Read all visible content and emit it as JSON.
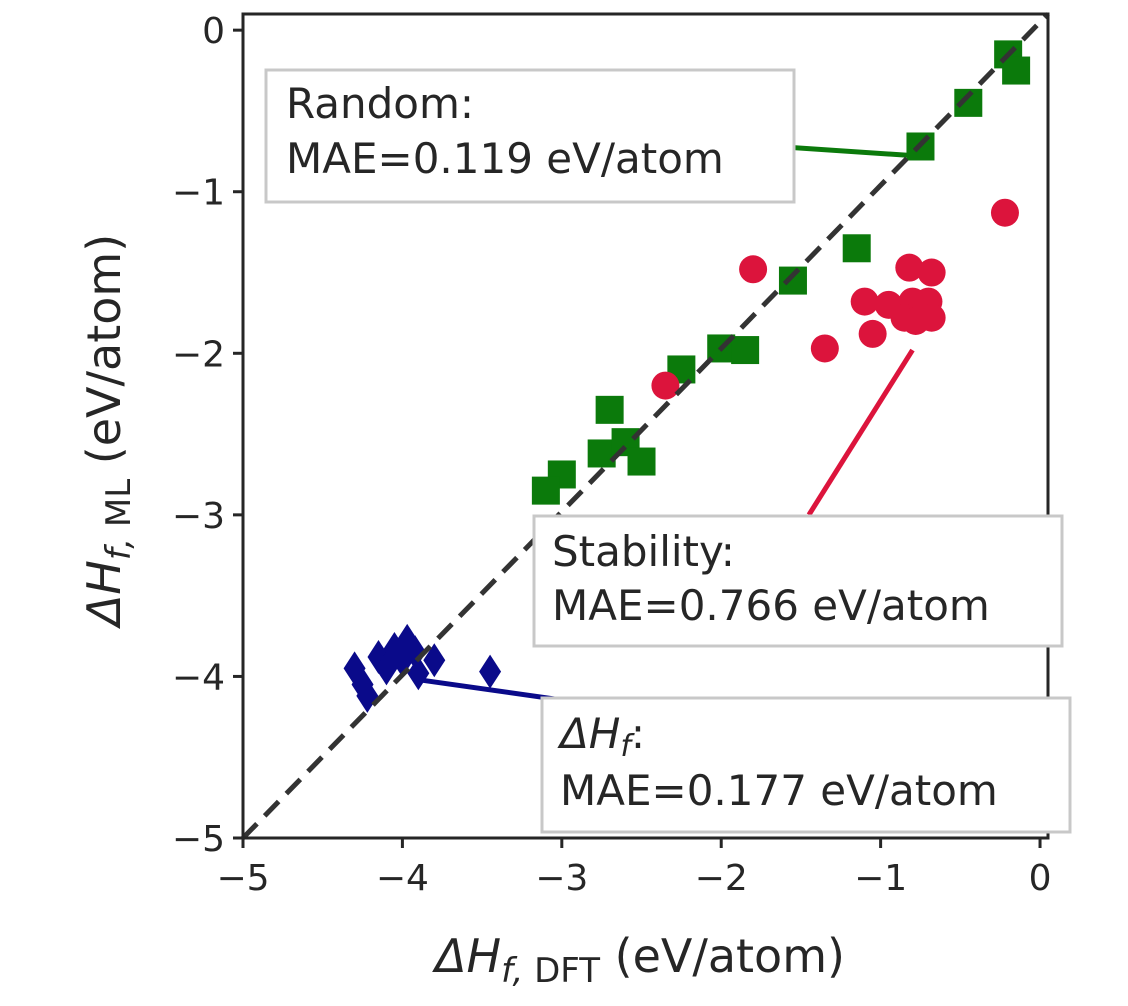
{
  "chart_data": {
    "type": "scatter",
    "xlabel": "ΔH",
    "xlabel_sub": "f, DFT",
    "xlabel_unit": " (eV/atom)",
    "ylabel": "ΔH",
    "ylabel_sub": "f, ML",
    "ylabel_unit": " (eV/atom)",
    "xlim": [
      -5,
      0.05
    ],
    "ylim": [
      -5,
      0.1
    ],
    "xticks": [
      -5,
      -4,
      -3,
      -2,
      -1,
      0
    ],
    "yticks": [
      0,
      -1,
      -2,
      -3,
      -4,
      -5
    ],
    "xtick_labels": [
      "−5",
      "−4",
      "−3",
      "−2",
      "−1",
      "0"
    ],
    "ytick_labels": [
      "0",
      "−1",
      "−2",
      "−3",
      "−4",
      "−5"
    ],
    "reference_line": {
      "style": "dashed",
      "color": "#333333",
      "from": [
        -5,
        -5
      ],
      "to": [
        0.05,
        0.1
      ]
    },
    "series": [
      {
        "marker": "square",
        "color": "#0b7a0b",
        "points": [
          [
            -0.2,
            -0.15
          ],
          [
            -0.15,
            -0.25
          ],
          [
            -0.45,
            -0.45
          ],
          [
            -0.75,
            -0.72
          ],
          [
            -1.15,
            -1.35
          ],
          [
            -1.55,
            -1.55
          ],
          [
            -2.25,
            -2.1
          ],
          [
            -2.0,
            -1.97
          ],
          [
            -1.85,
            -1.98
          ],
          [
            -2.7,
            -2.35
          ],
          [
            -2.75,
            -2.62
          ],
          [
            -2.6,
            -2.55
          ],
          [
            -2.5,
            -2.67
          ],
          [
            -3.0,
            -2.75
          ],
          [
            -3.1,
            -2.85
          ]
        ]
      },
      {
        "marker": "circle",
        "color": "#dc143c",
        "points": [
          [
            -0.22,
            -1.13
          ],
          [
            -1.8,
            -1.48
          ],
          [
            -0.82,
            -1.47
          ],
          [
            -0.68,
            -1.5
          ],
          [
            -1.1,
            -1.68
          ],
          [
            -0.95,
            -1.7
          ],
          [
            -0.8,
            -1.68
          ],
          [
            -0.75,
            -1.72
          ],
          [
            -0.7,
            -1.68
          ],
          [
            -0.85,
            -1.78
          ],
          [
            -0.78,
            -1.8
          ],
          [
            -0.68,
            -1.78
          ],
          [
            -1.05,
            -1.88
          ],
          [
            -1.35,
            -1.97
          ],
          [
            -2.35,
            -2.2
          ]
        ]
      },
      {
        "marker": "diamond",
        "color": "#0a0a8a",
        "points": [
          [
            -4.3,
            -3.95
          ],
          [
            -4.25,
            -4.05
          ],
          [
            -4.22,
            -4.12
          ],
          [
            -4.15,
            -3.88
          ],
          [
            -4.1,
            -3.95
          ],
          [
            -4.05,
            -3.83
          ],
          [
            -4.0,
            -3.9
          ],
          [
            -3.97,
            -3.78
          ],
          [
            -3.92,
            -3.85
          ],
          [
            -3.9,
            -3.98
          ],
          [
            -3.8,
            -3.9
          ],
          [
            -3.45,
            -3.97
          ]
        ]
      }
    ],
    "annotations": [
      {
        "lines": [
          "Random:",
          "MAE=0.119 eV/atom"
        ],
        "color": "#0b7a0b",
        "arrow_from": [
          -2.7,
          -0.65
        ],
        "arrow_to": [
          -0.75,
          -0.78
        ]
      },
      {
        "lines": [
          "Stability:",
          "MAE=0.766 eV/atom"
        ],
        "color": "#dc143c",
        "arrow_from": [
          -1.45,
          -3.0
        ],
        "arrow_to": [
          -0.8,
          -1.98
        ]
      },
      {
        "lines": [
          "ΔH_f:",
          "MAE=0.177 eV/atom"
        ],
        "color": "#0a0a8a",
        "arrow_from": [
          -2.4,
          -4.23
        ],
        "arrow_to": [
          -3.9,
          -4.02
        ]
      }
    ]
  }
}
